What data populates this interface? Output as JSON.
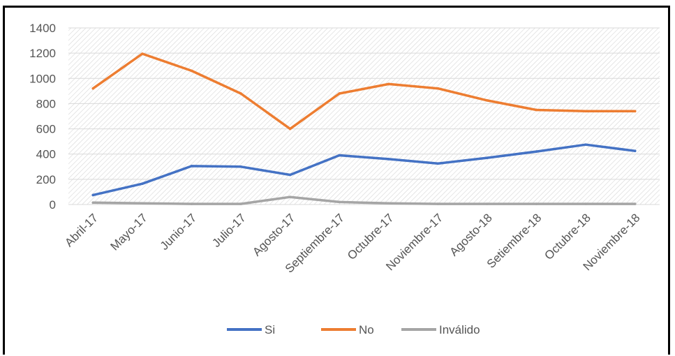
{
  "chart_data": {
    "type": "line",
    "title": "",
    "xlabel": "",
    "ylabel": "",
    "categories": [
      "Abril-17",
      "Mayo-17",
      "Junio-17",
      "Julio-17",
      "Agosto-17",
      "Septiembre-17",
      "Octubre-17",
      "Noviembre-17",
      "Agosto-18",
      "Setiembre-18",
      "Octubre-18",
      "Noviembre-18"
    ],
    "ylim": [
      0,
      1400
    ],
    "yticks": [
      "0",
      "200",
      "400",
      "600",
      "800",
      "1000",
      "1200",
      "1400"
    ],
    "grid": true,
    "legend_position": "bottom",
    "series": [
      {
        "name": "Si",
        "color": "#4472C4",
        "values": [
          75,
          165,
          305,
          300,
          235,
          390,
          360,
          325,
          370,
          420,
          475,
          425
        ]
      },
      {
        "name": "No",
        "color": "#ED7D31",
        "values": [
          920,
          1195,
          1060,
          880,
          600,
          880,
          955,
          920,
          825,
          750,
          740,
          740
        ]
      },
      {
        "name": "Inválido",
        "color": "#A5A5A5",
        "values": [
          15,
          10,
          5,
          5,
          60,
          20,
          10,
          5,
          5,
          5,
          5,
          5
        ]
      }
    ]
  }
}
